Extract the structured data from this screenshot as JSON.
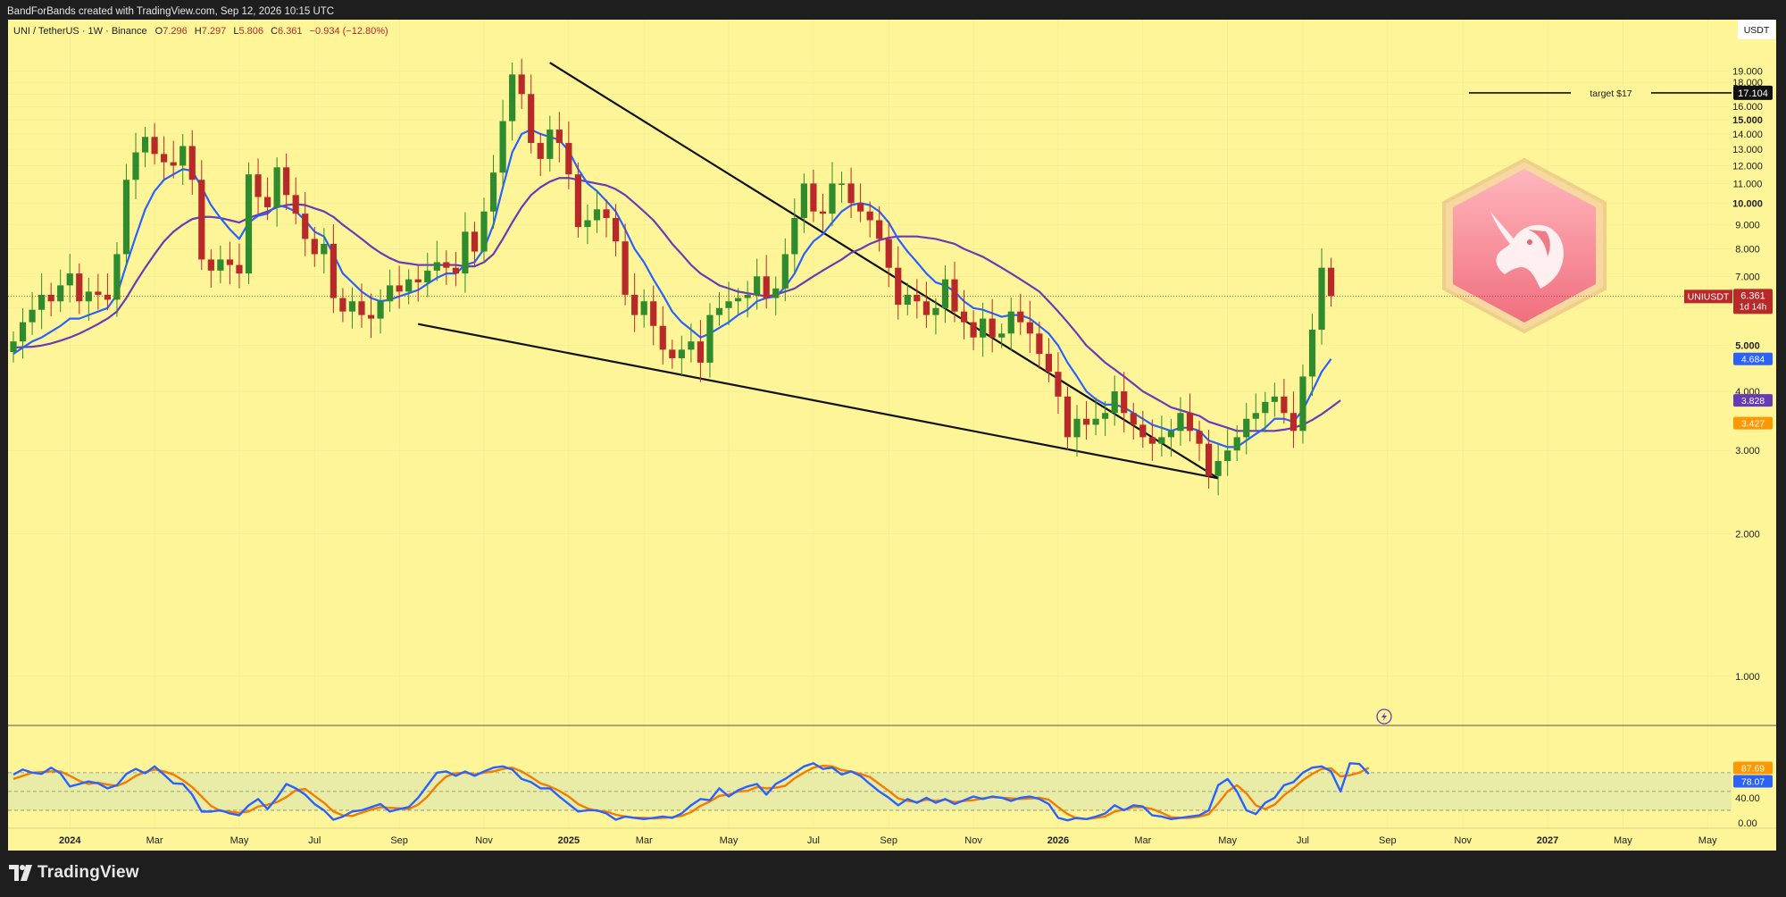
{
  "header": {
    "credit": "BandForBands created with TradingView.com, Sep 12, 2026 10:15 UTC"
  },
  "legend": {
    "symbol": "UNI / TetherUS · 1W · Binance",
    "o_label": "O",
    "o_value": "7.296",
    "h_label": "H",
    "h_value": "7.297",
    "l_label": "L",
    "l_value": "5.806",
    "c_label": "C",
    "c_value": "6.361",
    "change": "−0.934 (−12.80%)"
  },
  "currency_button": "USDT",
  "target": {
    "label": "target $17",
    "value": "17.104",
    "price": 17.104
  },
  "price_tag": {
    "symbol": "UNIUSDT",
    "value": "6.361",
    "countdown": "1d 14h",
    "price": 6.361
  },
  "ma_tags": [
    {
      "value": "4.684",
      "price": 4.684,
      "color": "#2962ff"
    },
    {
      "value": "3.828",
      "price": 3.828,
      "color": "#673ab7"
    },
    {
      "value": "3.427",
      "price": 3.427,
      "color": "#ff9800"
    }
  ],
  "osc_tags": [
    {
      "value": "87.69",
      "level": 87.69,
      "color": "#ff9800"
    },
    {
      "value": "78.07",
      "level": 78.07,
      "color": "#2962ff"
    }
  ],
  "colors": {
    "bg": "#fdf597",
    "up": "#2e8b2e",
    "down": "#b82a2a",
    "fast_ma": "#2962ff",
    "slow_ma": "#6a3ab7",
    "stoch_k": "#2962ff",
    "stoch_d": "#f57c00",
    "grid": "#d8d08a"
  },
  "brand": "TradingView",
  "icons": [
    "uniswap-unicorn-logo",
    "tradingview-logo",
    "lightning-icon"
  ],
  "chart_data": {
    "type": "candlestick",
    "scale": "log",
    "price_ticks": [
      1.0,
      2.0,
      3.0,
      4.0,
      5.0,
      6.0,
      7.0,
      8.0,
      9.0,
      10.0,
      11.0,
      12.0,
      13.0,
      14.0,
      15.0,
      16.0,
      17.0,
      18.0,
      19.0
    ],
    "price_tick_labels": [
      "1.000",
      "2.000",
      "3.000",
      "4.000",
      "5.000",
      "6.000",
      "7.000",
      "8.000",
      "9.000",
      "10.000",
      "11.000",
      "12.000",
      "13.000",
      "14.000",
      "15.000",
      "16.000",
      "17.000",
      "18.000",
      "19.000"
    ],
    "bold_ticks": [
      "5.000",
      "10.000",
      "15.000"
    ],
    "x_labels": [
      {
        "label": "2024",
        "idx": 6,
        "bold": true
      },
      {
        "label": "Mar",
        "idx": 15
      },
      {
        "label": "May",
        "idx": 24
      },
      {
        "label": "Jul",
        "idx": 32
      },
      {
        "label": "Sep",
        "idx": 41
      },
      {
        "label": "Nov",
        "idx": 50
      },
      {
        "label": "2025",
        "idx": 59,
        "bold": true
      },
      {
        "label": "Mar",
        "idx": 67
      },
      {
        "label": "May",
        "idx": 76
      },
      {
        "label": "Jul",
        "idx": 85
      },
      {
        "label": "Sep",
        "idx": 93
      },
      {
        "label": "Nov",
        "idx": 102
      },
      {
        "label": "2026",
        "idx": 111,
        "bold": true
      },
      {
        "label": "Mar",
        "idx": 120
      },
      {
        "label": "May",
        "idx": 129
      },
      {
        "label": "Jul",
        "idx": 137
      },
      {
        "label": "Sep",
        "idx": 146
      },
      {
        "label": "Nov",
        "idx": 154
      },
      {
        "label": "2027",
        "idx": 163,
        "bold": true
      },
      {
        "label": "May",
        "idx": 171
      },
      {
        "label": "May",
        "idx": 180
      }
    ],
    "closes": [
      5.1,
      5.6,
      5.95,
      6.4,
      6.2,
      6.7,
      7.1,
      6.2,
      6.5,
      6.4,
      6.25,
      7.8,
      11.2,
      12.8,
      13.8,
      12.7,
      12.2,
      12.0,
      13.2,
      11.2,
      7.6,
      7.2,
      7.6,
      7.4,
      7.1,
      11.5,
      10.3,
      9.8,
      11.9,
      10.4,
      9.5,
      8.4,
      7.8,
      8.2,
      6.3,
      5.9,
      6.2,
      5.8,
      5.7,
      6.2,
      6.7,
      6.5,
      6.9,
      6.8,
      7.2,
      7.5,
      7.3,
      7.1,
      8.7,
      7.9,
      9.6,
      11.6,
      14.9,
      18.7,
      17.0,
      13.4,
      12.4,
      14.3,
      13.4,
      11.5,
      8.9,
      9.2,
      9.7,
      9.3,
      8.3,
      6.4,
      5.8,
      6.2,
      5.5,
      4.9,
      4.7,
      4.9,
      5.1,
      4.6,
      5.8,
      6.0,
      6.2,
      6.3,
      6.4,
      7.0,
      6.3,
      6.6,
      7.8,
      9.3,
      11.0,
      9.6,
      9.5,
      11.0,
      11.0,
      10.0,
      9.6,
      9.2,
      8.4,
      7.3,
      6.1,
      6.4,
      6.2,
      5.8,
      6.0,
      6.9,
      5.9,
      5.6,
      5.2,
      5.7,
      5.2,
      5.3,
      5.9,
      5.6,
      5.3,
      4.8,
      4.4,
      3.9,
      3.2,
      3.5,
      3.4,
      3.5,
      3.6,
      4.0,
      3.6,
      3.4,
      3.2,
      3.1,
      3.2,
      3.3,
      3.6,
      3.3,
      3.1,
      2.65,
      2.85,
      3.0,
      3.2,
      3.5,
      3.6,
      3.8,
      3.9,
      3.6,
      3.3,
      4.3,
      5.4,
      7.3,
      6.36
    ],
    "fast_ma": [
      4.8,
      4.95,
      5.1,
      5.2,
      5.35,
      5.5,
      5.7,
      5.7,
      5.8,
      5.9,
      6.0,
      6.4,
      7.4,
      8.5,
      9.7,
      10.6,
      11.2,
      11.5,
      11.8,
      11.7,
      10.8,
      9.9,
      9.3,
      8.8,
      8.4,
      9.1,
      9.4,
      9.5,
      9.9,
      9.8,
      9.6,
      9.2,
      8.7,
      8.5,
      7.8,
      7.1,
      6.8,
      6.5,
      6.3,
      6.2,
      6.25,
      6.35,
      6.45,
      6.55,
      6.75,
      6.95,
      7.1,
      7.1,
      7.4,
      7.5,
      8.0,
      9.0,
      10.8,
      12.8,
      14.0,
      14.3,
      14.0,
      13.8,
      13.6,
      12.9,
      11.8,
      11.0,
      10.6,
      10.1,
      9.6,
      8.8,
      8.0,
      7.5,
      6.9,
      6.4,
      5.9,
      5.6,
      5.4,
      5.2,
      5.3,
      5.45,
      5.6,
      5.8,
      5.95,
      6.2,
      6.3,
      6.35,
      6.65,
      7.1,
      7.8,
      8.3,
      8.6,
      9.1,
      9.6,
      9.9,
      10.0,
      9.9,
      9.6,
      9.1,
      8.4,
      7.9,
      7.5,
      7.1,
      6.8,
      6.7,
      6.5,
      6.2,
      6.0,
      5.95,
      5.85,
      5.75,
      5.8,
      5.8,
      5.7,
      5.5,
      5.3,
      5.0,
      4.6,
      4.3,
      4.0,
      3.85,
      3.75,
      3.75,
      3.7,
      3.6,
      3.5,
      3.4,
      3.35,
      3.3,
      3.35,
      3.35,
      3.3,
      3.15,
      3.1,
      3.05,
      3.05,
      3.15,
      3.25,
      3.35,
      3.5,
      3.5,
      3.45,
      3.65,
      4.0,
      4.4,
      4.684
    ],
    "slow_ma": [
      4.95,
      4.96,
      4.97,
      5.0,
      5.05,
      5.12,
      5.2,
      5.3,
      5.42,
      5.55,
      5.7,
      5.9,
      6.3,
      6.8,
      7.3,
      7.8,
      8.3,
      8.7,
      9.0,
      9.25,
      9.35,
      9.35,
      9.3,
      9.2,
      9.1,
      9.3,
      9.45,
      9.6,
      9.8,
      9.9,
      9.95,
      9.9,
      9.75,
      9.6,
      9.35,
      9.0,
      8.7,
      8.4,
      8.1,
      7.85,
      7.65,
      7.5,
      7.45,
      7.4,
      7.4,
      7.4,
      7.4,
      7.4,
      7.35,
      7.35,
      7.5,
      7.8,
      8.4,
      9.1,
      9.8,
      10.4,
      10.8,
      11.1,
      11.3,
      11.3,
      11.2,
      11.1,
      11.0,
      10.9,
      10.7,
      10.4,
      10.0,
      9.6,
      9.2,
      8.7,
      8.2,
      7.8,
      7.4,
      7.1,
      6.9,
      6.7,
      6.6,
      6.5,
      6.45,
      6.4,
      6.35,
      6.4,
      6.5,
      6.6,
      6.8,
      7.0,
      7.2,
      7.4,
      7.6,
      7.85,
      8.0,
      8.2,
      8.35,
      8.45,
      8.5,
      8.5,
      8.5,
      8.45,
      8.4,
      8.3,
      8.2,
      8.0,
      7.85,
      7.7,
      7.5,
      7.3,
      7.1,
      6.9,
      6.7,
      6.5,
      6.2,
      5.9,
      5.6,
      5.3,
      5.0,
      4.8,
      4.6,
      4.45,
      4.3,
      4.15,
      4.0,
      3.9,
      3.8,
      3.7,
      3.65,
      3.6,
      3.55,
      3.45,
      3.4,
      3.35,
      3.3,
      3.3,
      3.3,
      3.3,
      3.3,
      3.32,
      3.35,
      3.4,
      3.48,
      3.58,
      3.7,
      3.828
    ],
    "stoch_k": [
      77,
      85,
      80,
      78,
      88,
      79,
      58,
      62,
      66,
      63,
      55,
      60,
      78,
      86,
      79,
      90,
      77,
      63,
      62,
      45,
      18,
      18,
      20,
      15,
      12,
      28,
      38,
      22,
      40,
      62,
      55,
      45,
      30,
      20,
      5,
      10,
      18,
      20,
      25,
      30,
      18,
      22,
      25,
      40,
      60,
      80,
      82,
      75,
      82,
      75,
      82,
      88,
      90,
      85,
      70,
      65,
      55,
      55,
      42,
      30,
      18,
      20,
      20,
      15,
      5,
      10,
      8,
      6,
      8,
      10,
      8,
      15,
      28,
      38,
      36,
      55,
      42,
      52,
      58,
      62,
      45,
      62,
      70,
      80,
      90,
      95,
      86,
      88,
      77,
      82,
      75,
      62,
      50,
      40,
      28,
      38,
      32,
      40,
      32,
      38,
      30,
      36,
      42,
      38,
      42,
      40,
      35,
      40,
      42,
      38,
      30,
      8,
      4,
      8,
      6,
      10,
      15,
      28,
      20,
      28,
      26,
      12,
      10,
      6,
      8,
      10,
      12,
      20,
      60,
      70,
      50,
      20,
      14,
      32,
      40,
      60,
      65,
      80,
      88,
      90,
      82,
      50,
      95,
      94,
      78
    ],
    "stoch_d": [
      70,
      75,
      80,
      81,
      82,
      82,
      75,
      67,
      62,
      64,
      61,
      59,
      65,
      75,
      81,
      85,
      82,
      77,
      68,
      57,
      42,
      27,
      19,
      18,
      16,
      18,
      26,
      29,
      33,
      41,
      52,
      54,
      43,
      32,
      18,
      12,
      11,
      16,
      21,
      25,
      24,
      23,
      22,
      29,
      42,
      60,
      74,
      79,
      80,
      77,
      80,
      82,
      86,
      88,
      82,
      73,
      63,
      58,
      51,
      42,
      30,
      23,
      19,
      18,
      13,
      10,
      8,
      8,
      7,
      8,
      9,
      11,
      17,
      27,
      34,
      43,
      45,
      50,
      51,
      57,
      55,
      56,
      59,
      71,
      80,
      88,
      91,
      90,
      84,
      82,
      78,
      73,
      62,
      51,
      39,
      35,
      33,
      37,
      35,
      37,
      33,
      35,
      36,
      39,
      41,
      40,
      39,
      38,
      39,
      40,
      37,
      25,
      14,
      7,
      6,
      8,
      10,
      18,
      21,
      25,
      25,
      22,
      16,
      9,
      8,
      8,
      10,
      14,
      31,
      50,
      60,
      47,
      28,
      22,
      29,
      44,
      55,
      68,
      78,
      86,
      87,
      74,
      76,
      80,
      87.69
    ],
    "oscillator_levels": [
      0,
      20,
      50,
      80
    ],
    "oscillator_ticks": [
      "0.00",
      "40.00"
    ],
    "oscillator_tick_values": [
      0,
      40
    ],
    "annotations": [
      {
        "type": "trendline",
        "from": {
          "idx": 57,
          "price": 19.8
        },
        "to": {
          "idx": 128,
          "price": 2.62
        }
      },
      {
        "type": "trendline",
        "from": {
          "idx": 43,
          "price": 5.55
        },
        "to": {
          "idx": 128,
          "price": 2.62
        }
      }
    ]
  }
}
